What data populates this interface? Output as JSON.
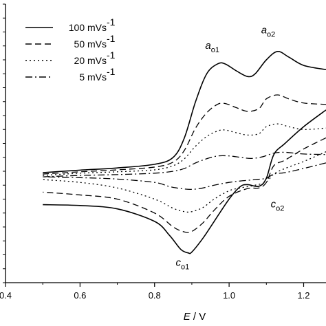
{
  "chart_data": {
    "type": "line",
    "title": "",
    "xlabel": {
      "var": "E",
      "sep": " / ",
      "unit": "V"
    },
    "ylabel": "",
    "xlim": [
      0.4,
      1.26
    ],
    "ylim": [
      0,
      1
    ],
    "x_ticks": [
      0.4,
      0.6,
      0.8,
      1.0,
      1.2
    ],
    "x_tick_labels": [
      "0.4",
      "0.6",
      "0.8",
      "1.0",
      "1.2"
    ],
    "y_tick_count": 20,
    "grid": false,
    "legend_position": "top-left",
    "legend": [
      {
        "text": "100 mVs",
        "sup": "-1",
        "dash": "solid"
      },
      {
        "text": "50 mVs",
        "sup": "-1",
        "dash": "dashed"
      },
      {
        "text": "20 mVs",
        "sup": "-1",
        "dash": "dotted"
      },
      {
        "text": "5 mVs",
        "sup": "-1",
        "dash": "dashdot"
      }
    ],
    "series": [
      {
        "name": "100 mVs-1",
        "forward": [
          [
            0.5,
            0.395
          ],
          [
            0.6,
            0.404
          ],
          [
            0.7,
            0.412
          ],
          [
            0.8,
            0.425
          ],
          [
            0.85,
            0.45
          ],
          [
            0.88,
            0.52
          ],
          [
            0.91,
            0.65
          ],
          [
            0.94,
            0.75
          ],
          [
            0.97,
            0.786
          ],
          [
            0.99,
            0.785
          ],
          [
            1.02,
            0.76
          ],
          [
            1.05,
            0.74
          ],
          [
            1.07,
            0.75
          ],
          [
            1.1,
            0.8
          ],
          [
            1.13,
            0.83
          ],
          [
            1.16,
            0.81
          ],
          [
            1.2,
            0.78
          ],
          [
            1.26,
            0.765
          ]
        ],
        "reverse": [
          [
            1.26,
            0.62
          ],
          [
            1.2,
            0.56
          ],
          [
            1.15,
            0.5
          ],
          [
            1.12,
            0.46
          ],
          [
            1.1,
            0.375
          ],
          [
            1.08,
            0.346
          ],
          [
            1.05,
            0.352
          ],
          [
            1.03,
            0.345
          ],
          [
            1.0,
            0.3
          ],
          [
            0.96,
            0.22
          ],
          [
            0.93,
            0.16
          ],
          [
            0.9,
            0.11
          ],
          [
            0.89,
            0.107
          ],
          [
            0.87,
            0.12
          ],
          [
            0.84,
            0.17
          ],
          [
            0.8,
            0.22
          ],
          [
            0.7,
            0.265
          ],
          [
            0.6,
            0.277
          ],
          [
            0.5,
            0.28
          ]
        ]
      },
      {
        "name": "50 mVs-1",
        "forward": [
          [
            0.5,
            0.39
          ],
          [
            0.6,
            0.398
          ],
          [
            0.7,
            0.405
          ],
          [
            0.8,
            0.415
          ],
          [
            0.85,
            0.433
          ],
          [
            0.88,
            0.475
          ],
          [
            0.91,
            0.555
          ],
          [
            0.94,
            0.61
          ],
          [
            0.97,
            0.641
          ],
          [
            0.99,
            0.643
          ],
          [
            1.02,
            0.628
          ],
          [
            1.05,
            0.615
          ],
          [
            1.08,
            0.625
          ],
          [
            1.1,
            0.66
          ],
          [
            1.13,
            0.674
          ],
          [
            1.16,
            0.66
          ],
          [
            1.2,
            0.645
          ],
          [
            1.26,
            0.64
          ]
        ],
        "reverse": [
          [
            1.26,
            0.52
          ],
          [
            1.2,
            0.48
          ],
          [
            1.15,
            0.44
          ],
          [
            1.12,
            0.42
          ],
          [
            1.1,
            0.36
          ],
          [
            1.08,
            0.34
          ],
          [
            1.05,
            0.338
          ],
          [
            1.0,
            0.31
          ],
          [
            0.96,
            0.26
          ],
          [
            0.93,
            0.215
          ],
          [
            0.9,
            0.184
          ],
          [
            0.88,
            0.182
          ],
          [
            0.85,
            0.2
          ],
          [
            0.8,
            0.25
          ],
          [
            0.7,
            0.3
          ],
          [
            0.6,
            0.315
          ],
          [
            0.5,
            0.325
          ]
        ]
      },
      {
        "name": "20 mVs-1",
        "forward": [
          [
            0.5,
            0.385
          ],
          [
            0.6,
            0.393
          ],
          [
            0.7,
            0.398
          ],
          [
            0.8,
            0.405
          ],
          [
            0.85,
            0.42
          ],
          [
            0.88,
            0.445
          ],
          [
            0.91,
            0.49
          ],
          [
            0.94,
            0.525
          ],
          [
            0.97,
            0.545
          ],
          [
            0.99,
            0.548
          ],
          [
            1.02,
            0.538
          ],
          [
            1.05,
            0.53
          ],
          [
            1.08,
            0.535
          ],
          [
            1.1,
            0.56
          ],
          [
            1.13,
            0.57
          ],
          [
            1.16,
            0.56
          ],
          [
            1.2,
            0.55
          ],
          [
            1.26,
            0.555
          ]
        ],
        "reverse": [
          [
            1.26,
            0.47
          ],
          [
            1.2,
            0.435
          ],
          [
            1.15,
            0.41
          ],
          [
            1.12,
            0.39
          ],
          [
            1.1,
            0.362
          ],
          [
            1.07,
            0.35
          ],
          [
            1.03,
            0.34
          ],
          [
            1.0,
            0.33
          ],
          [
            0.96,
            0.3
          ],
          [
            0.93,
            0.27
          ],
          [
            0.9,
            0.255
          ],
          [
            0.88,
            0.255
          ],
          [
            0.85,
            0.267
          ],
          [
            0.8,
            0.3
          ],
          [
            0.7,
            0.34
          ],
          [
            0.6,
            0.36
          ],
          [
            0.5,
            0.37
          ]
        ]
      },
      {
        "name": "5 mVs-1",
        "forward": [
          [
            0.5,
            0.38
          ],
          [
            0.6,
            0.385
          ],
          [
            0.7,
            0.388
          ],
          [
            0.8,
            0.393
          ],
          [
            0.85,
            0.4
          ],
          [
            0.88,
            0.41
          ],
          [
            0.91,
            0.43
          ],
          [
            0.94,
            0.445
          ],
          [
            0.97,
            0.455
          ],
          [
            1.0,
            0.455
          ],
          [
            1.03,
            0.45
          ],
          [
            1.06,
            0.446
          ],
          [
            1.09,
            0.452
          ],
          [
            1.12,
            0.465
          ],
          [
            1.15,
            0.468
          ],
          [
            1.2,
            0.462
          ],
          [
            1.26,
            0.46
          ]
        ],
        "reverse": [
          [
            1.26,
            0.43
          ],
          [
            1.2,
            0.41
          ],
          [
            1.15,
            0.395
          ],
          [
            1.12,
            0.39
          ],
          [
            1.1,
            0.375
          ],
          [
            1.07,
            0.37
          ],
          [
            1.03,
            0.365
          ],
          [
            1.0,
            0.36
          ],
          [
            0.96,
            0.35
          ],
          [
            0.93,
            0.34
          ],
          [
            0.9,
            0.335
          ],
          [
            0.87,
            0.338
          ],
          [
            0.84,
            0.345
          ],
          [
            0.8,
            0.36
          ],
          [
            0.7,
            0.372
          ],
          [
            0.6,
            0.377
          ],
          [
            0.5,
            0.38
          ]
        ]
      }
    ],
    "annotations": [
      {
        "base": "a",
        "sub": "o1",
        "x": 0.955,
        "y": 0.84
      },
      {
        "base": "a",
        "sub": "o2",
        "x": 1.105,
        "y": 0.895
      },
      {
        "base": "c",
        "sub": "o2",
        "x": 1.13,
        "y": 0.27
      },
      {
        "base": "c",
        "sub": "o1",
        "x": 0.875,
        "y": 0.06
      }
    ]
  }
}
